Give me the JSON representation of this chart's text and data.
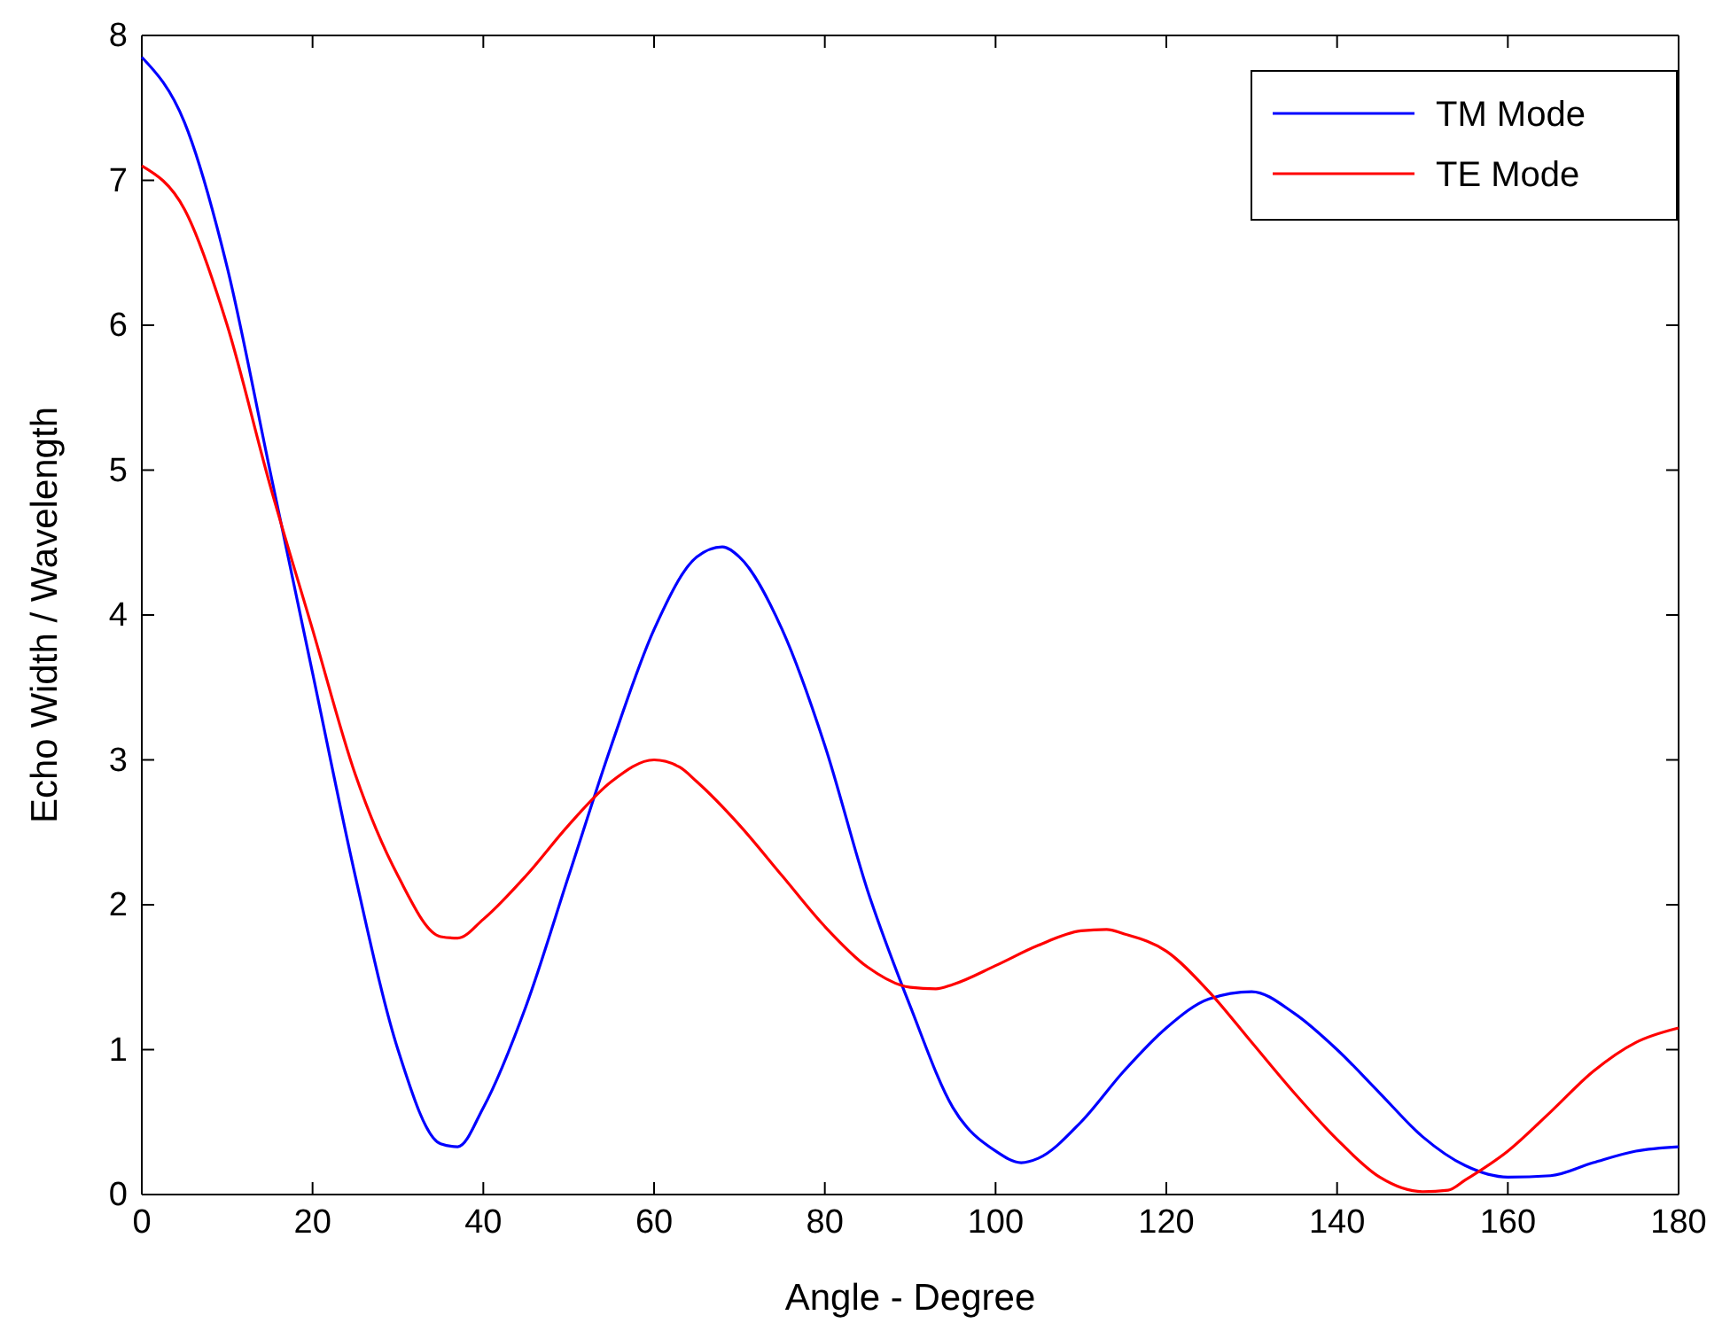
{
  "chart_data": {
    "type": "line",
    "xlabel": "Angle - Degree",
    "ylabel": "Echo Width / Wavelength",
    "xlim": [
      0,
      180
    ],
    "xticks": [
      0,
      20,
      40,
      60,
      80,
      100,
      120,
      140,
      160,
      180
    ],
    "ylim": [
      0,
      8
    ],
    "yticks": [
      0,
      1,
      2,
      3,
      4,
      5,
      6,
      7,
      8
    ],
    "grid": false,
    "legend": "top right",
    "marker": "none",
    "line_style": "solid",
    "series": [
      {
        "name": "TM Mode",
        "color": "#0000ff",
        "x": [
          0,
          5,
          10,
          15,
          20,
          25,
          30,
          35,
          37,
          40,
          45,
          50,
          55,
          60,
          65,
          68,
          70,
          75,
          80,
          85,
          90,
          95,
          100,
          103,
          105,
          110,
          115,
          120,
          125,
          130,
          135,
          140,
          145,
          150,
          155,
          160,
          165,
          170,
          175,
          180
        ],
        "values": [
          7.85,
          7.4,
          6.4,
          5.0,
          3.6,
          2.2,
          1.0,
          0.35,
          0.33,
          0.6,
          1.3,
          2.2,
          3.1,
          3.9,
          4.4,
          4.47,
          4.4,
          3.9,
          3.1,
          2.1,
          1.3,
          0.6,
          0.3,
          0.22,
          0.25,
          0.5,
          0.85,
          1.15,
          1.35,
          1.4,
          1.25,
          1.0,
          0.7,
          0.4,
          0.2,
          0.12,
          0.13,
          0.22,
          0.3,
          0.33
        ]
      },
      {
        "name": "TE Mode",
        "color": "#ff0000",
        "x": [
          0,
          5,
          10,
          15,
          20,
          25,
          30,
          35,
          37,
          40,
          45,
          50,
          55,
          60,
          63,
          65,
          70,
          75,
          80,
          85,
          90,
          93,
          95,
          100,
          105,
          110,
          113,
          115,
          120,
          125,
          130,
          135,
          140,
          145,
          150,
          153,
          155,
          160,
          165,
          170,
          175,
          180
        ],
        "values": [
          7.1,
          6.8,
          6.0,
          4.9,
          3.9,
          2.9,
          2.2,
          1.78,
          1.77,
          1.9,
          2.2,
          2.55,
          2.85,
          3.0,
          2.95,
          2.85,
          2.55,
          2.2,
          1.85,
          1.57,
          1.43,
          1.42,
          1.45,
          1.58,
          1.72,
          1.82,
          1.83,
          1.8,
          1.68,
          1.4,
          1.05,
          0.7,
          0.38,
          0.12,
          0.02,
          0.03,
          0.1,
          0.3,
          0.57,
          0.85,
          1.05,
          1.15
        ]
      }
    ]
  }
}
